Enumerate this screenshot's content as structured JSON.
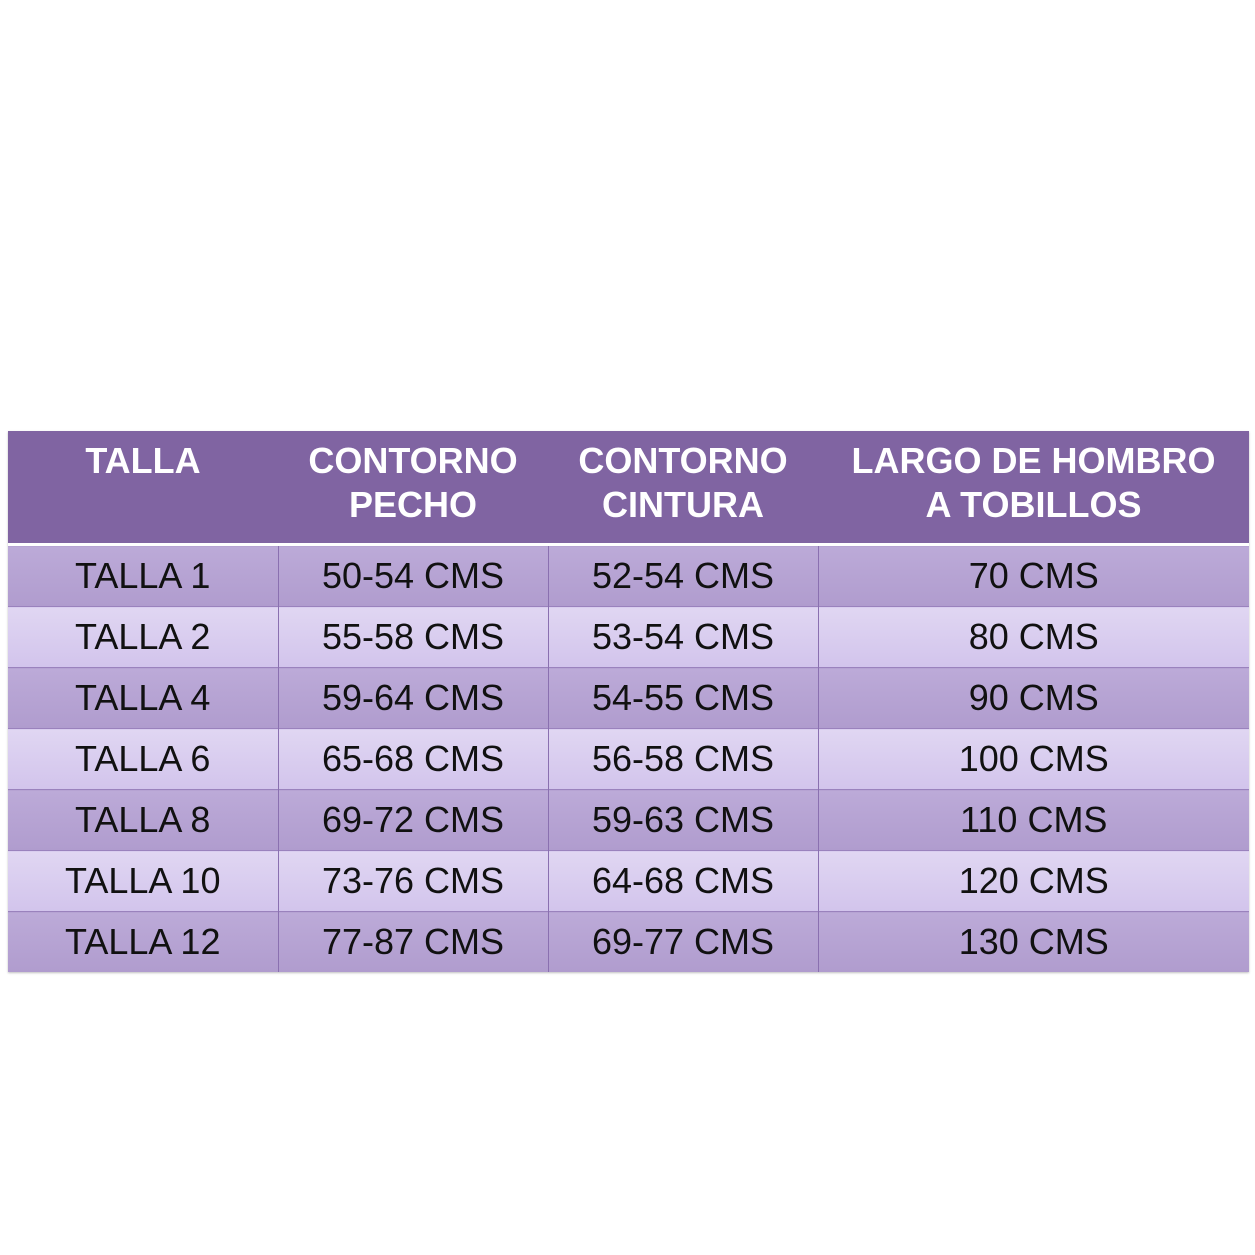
{
  "headers": [
    [
      "TALLA",
      ""
    ],
    [
      "CONTORNO",
      "PECHO"
    ],
    [
      "CONTORNO",
      "CINTURA"
    ],
    [
      "LARGO DE HOMBRO",
      "A TOBILLOS"
    ]
  ],
  "rows": [
    [
      "TALLA 1",
      "50-54 CMS",
      "52-54 CMS",
      "70 CMS"
    ],
    [
      "TALLA 2",
      "55-58 CMS",
      "53-54 CMS",
      "80 CMS"
    ],
    [
      "TALLA 4",
      "59-64 CMS",
      "54-55 CMS",
      "90 CMS"
    ],
    [
      "TALLA 6",
      "65-68 CMS",
      "56-58 CMS",
      "100 CMS"
    ],
    [
      "TALLA 8",
      "69-72 CMS",
      "59-63 CMS",
      "110 CMS"
    ],
    [
      "TALLA 10",
      "73-76 CMS",
      "64-68 CMS",
      "120 CMS"
    ],
    [
      "TALLA 12",
      "77-87 CMS",
      "69-77 CMS",
      "130 CMS"
    ]
  ],
  "colors": {
    "header": "#8064a2",
    "row_dark": "#b5a3d3",
    "row_light": "#d8ccef"
  }
}
